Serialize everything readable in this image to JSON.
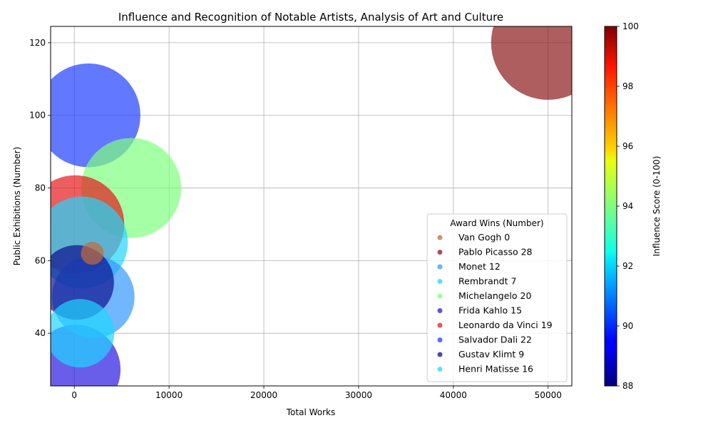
{
  "chart_data": {
    "type": "scatter",
    "title": "Influence and Recognition of Notable Artists, Analysis of Art and Culture",
    "xlabel": "Total Works",
    "ylabel": "Public Exhibitions (Number)",
    "xlim": [
      -2500,
      52500
    ],
    "ylim": [
      25.5,
      124.5
    ],
    "xticks": [
      0,
      10000,
      20000,
      30000,
      40000,
      50000
    ],
    "xtick_labels": [
      "0",
      "10000",
      "20000",
      "30000",
      "40000",
      "50000"
    ],
    "yticks": [
      40,
      60,
      80,
      100,
      120
    ],
    "ytick_labels": [
      "40",
      "60",
      "80",
      "100",
      "120"
    ],
    "grid": true,
    "legend": {
      "title": "Award Wins (Number)",
      "placement": "lower-right",
      "entries": [
        "Van Gogh 0",
        "Pablo Picasso 28",
        "Monet 12",
        "Rembrandt 7",
        "Michelangelo 20",
        "Frida Kahlo 15",
        "Leonardo da Vinci 19",
        "Salvador Dali 22",
        "Gustav Klimt 9",
        "Henri Matisse 16"
      ]
    },
    "colorbar": {
      "label": "Influence Score (0-100)",
      "range": [
        88,
        100
      ],
      "ticks": [
        "88",
        "90",
        "92",
        "94",
        "96",
        "98",
        "100"
      ],
      "colormap": "jet"
    },
    "points": [
      {
        "artist": "Van Gogh",
        "x": 1900,
        "y": 62,
        "award_wins": 0,
        "influence": 97,
        "color": "#c46a3a"
      },
      {
        "artist": "Pablo Picasso",
        "x": 50000,
        "y": 120,
        "award_wins": 28,
        "influence": 100,
        "color": "#8b1a1a"
      },
      {
        "artist": "Monet",
        "x": 2000,
        "y": 50,
        "award_wins": 12,
        "influence": 91,
        "color": "#3399ff"
      },
      {
        "artist": "Rembrandt",
        "x": 600,
        "y": 40,
        "award_wins": 7,
        "influence": 92,
        "color": "#1fd6ff"
      },
      {
        "artist": "Michelangelo",
        "x": 6000,
        "y": 80,
        "award_wins": 20,
        "influence": 94,
        "color": "#7fff7f"
      },
      {
        "artist": "Frida Kahlo",
        "x": 150,
        "y": 30,
        "award_wins": 15,
        "influence": 89,
        "color": "#2a1ae0"
      },
      {
        "artist": "Leonardo da Vinci",
        "x": 100,
        "y": 70,
        "award_wins": 19,
        "influence": 99,
        "color": "#e41a1c"
      },
      {
        "artist": "Salvador Dali",
        "x": 1500,
        "y": 100,
        "award_wins": 22,
        "influence": 90,
        "color": "#1f3fff"
      },
      {
        "artist": "Gustav Klimt",
        "x": 250,
        "y": 54,
        "award_wins": 9,
        "influence": 88,
        "color": "#0f0f8f"
      },
      {
        "artist": "Henri Matisse",
        "x": 800,
        "y": 65,
        "award_wins": 16,
        "influence": 92,
        "color": "#1fd6ff"
      }
    ]
  }
}
